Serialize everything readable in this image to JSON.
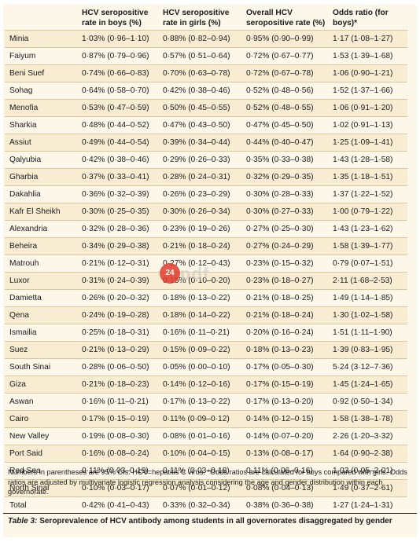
{
  "table": {
    "headers": [
      "",
      "HCV seropositive rate in boys (%)",
      "HCV seropositive rate in girls (%)",
      "Overall HCV seropositive rate (%)",
      "Odds ratio (for boys)*"
    ],
    "rows": [
      [
        "Minia",
        "1·03% (0·96–1·10)",
        "0·88% (0·82–0·94)",
        "0·95% (0·90–0·99)",
        "1·17 (1·08–1·27)"
      ],
      [
        "Faiyum",
        "0·87% (0·79–0·96)",
        "0·57% (0·51–0·64)",
        "0·72% (0·67–0·77)",
        "1·53 (1·39–1·68)"
      ],
      [
        "Beni Suef",
        "0·74% (0·66–0·83)",
        "0·70% (0·63–0·78)",
        "0·72% (0·67–0·78)",
        "1·06 (0·90–1·21)"
      ],
      [
        "Sohag",
        "0·64% (0·58–0·70)",
        "0·42% (0·38–0·46)",
        "0·52% (0·48–0·56)",
        "1·52 (1·37–1·66)"
      ],
      [
        "Menofia",
        "0·53% (0·47–0·59)",
        "0·50% (0·45–0·55)",
        "0·52% (0·48–0·55)",
        "1·06 (0·91–1·20)"
      ],
      [
        "Sharkia",
        "0·48% (0·44–0·52)",
        "0·47% (0·43–0·50)",
        "0·47% (0·45–0·50)",
        "1·02 (0·91–1·13)"
      ],
      [
        "Assiut",
        "0·49% (0·44–0·54)",
        "0·39% (0·34–0·44)",
        "0·44% (0·40–0·47)",
        "1·25 (1·09–1·41)"
      ],
      [
        "Qalyubia",
        "0·42% (0·38–0·46)",
        "0·29% (0·26–0·33)",
        "0·35% (0·33–0·38)",
        "1·43 (1·28–1·58)"
      ],
      [
        "Gharbia",
        "0·37% (0·33–0·41)",
        "0·28% (0·24–0·31)",
        "0·32% (0·29–0·35)",
        "1·35 (1·18–1·51)"
      ],
      [
        "Dakahlia",
        "0·36% (0·32–0·39)",
        "0·26% (0·23–0·29)",
        "0·30% (0·28–0·33)",
        "1·37 (1·22–1·52)"
      ],
      [
        "Kafr El Sheikh",
        "0·30% (0·25–0·35)",
        "0·30% (0·26–0·34)",
        "0·30% (0·27–0·33)",
        "1·00 (0·79–1·22)"
      ],
      [
        "Alexandria",
        "0·32% (0·28–0·36)",
        "0·23% (0·19–0·26)",
        "0·27% (0·25–0·30)",
        "1·43 (1·23–1·62)"
      ],
      [
        "Beheira",
        "0·34% (0·29–0·38)",
        "0·21% (0·18–0·24)",
        "0·27% (0·24–0·29)",
        "1·58 (1·39–1·77)"
      ],
      [
        "Matrouh",
        "0·21% (0·12–0·31)",
        "0·27% (0·12–0·43)",
        "0·23% (0·15–0·32)",
        "0·79 (0·07–1·51)"
      ],
      [
        "Luxor",
        "0·31% (0·24–0·39)",
        "0·15% (0·10–0·20)",
        "0·23% (0·18–0·27)",
        "2·11 (1·68–2·53)"
      ],
      [
        "Damietta",
        "0·26% (0·20–0·32)",
        "0·18% (0·13–0·22)",
        "0·21% (0·18–0·25)",
        "1·49 (1·14–1·85)"
      ],
      [
        "Qena",
        "0·24% (0·19–0·28)",
        "0·18% (0·14–0·22)",
        "0·21% (0·18–0·24)",
        "1·30 (1·02–1·58)"
      ],
      [
        "Ismailia",
        "0·25% (0·18–0·31)",
        "0·16% (0·11–0·21)",
        "0·20% (0·16–0·24)",
        "1·51 (1·11–1·90)"
      ],
      [
        "Suez",
        "0·21% (0·13–0·29)",
        "0·15% (0·09–0·22)",
        "0·18% (0·13–0·23)",
        "1·39 (0·83–1·95)"
      ],
      [
        "South Sinai",
        "0·28% (0·06–0·50)",
        "0·05% (0·00–0·10)",
        "0·17% (0·05–0·30)",
        "5·24 (3·12–7·36)"
      ],
      [
        "Giza",
        "0·21% (0·18–0·23)",
        "0·14% (0·12–0·16)",
        "0·17% (0·15–0·19)",
        "1·45 (1·24–1·65)"
      ],
      [
        "Aswan",
        "0·16% (0·11–0·21)",
        "0·17% (0·13–0·22)",
        "0·17% (0·13–0·20)",
        "0·92 (0·50–1·34)"
      ],
      [
        "Cairo",
        "0·17% (0·15–0·19)",
        "0·11% (0·09–0·12)",
        "0·14% (0·12–0·15)",
        "1·58 (1·38–1·78)"
      ],
      [
        "New Valley",
        "0·19% (0·08–0·30)",
        "0·08% (0·01–0·16)",
        "0·14% (0·07–0·20)",
        "2·26 (1·20–3·32)"
      ],
      [
        "Port Said",
        "0·16% (0·08–0·24)",
        "0·10% (0·04–0·15)",
        "0·13% (0·08–0·17)",
        "1·64 (0·90–2·38)"
      ],
      [
        "Red Sea",
        "0·11% (0·03–0·19)",
        "0·11% (0·03–0·18)",
        "0·11% (0·06–0·16)",
        "1·03 (0·05–2·01)"
      ],
      [
        "North Sinai",
        "0·10% (0·03–0·17)",
        "0·07% (0·01–0·12)",
        "0·08% (0·04–0·13)",
        "1·49 (0·37–2·61)"
      ],
      [
        "Total",
        "0·42% (0·41–0·43)",
        "0·33% (0·32–0·34)",
        "0·38% (0·36–0·38)",
        "1·27 (1·24–1·31)"
      ]
    ]
  },
  "notes": "Numbers in parentheses are 95% CIs. HCV=hepatitis C virus. *Odds ratios are calculated for boys compared with girls. Odds ratios are adjusted by multivariate logistic regression analysis considering the age and gender distribution within each governorate.",
  "caption": {
    "label": "Table 3:",
    "text": " Seroprevalence of HCV antibody among students in all governorates disaggregated by gender"
  },
  "watermark": {
    "badge": "24",
    "text": "pdf"
  },
  "colors": {
    "background": "#fdf7ea",
    "stripe": "#f8ecd2",
    "rule": "#d9c99a"
  }
}
